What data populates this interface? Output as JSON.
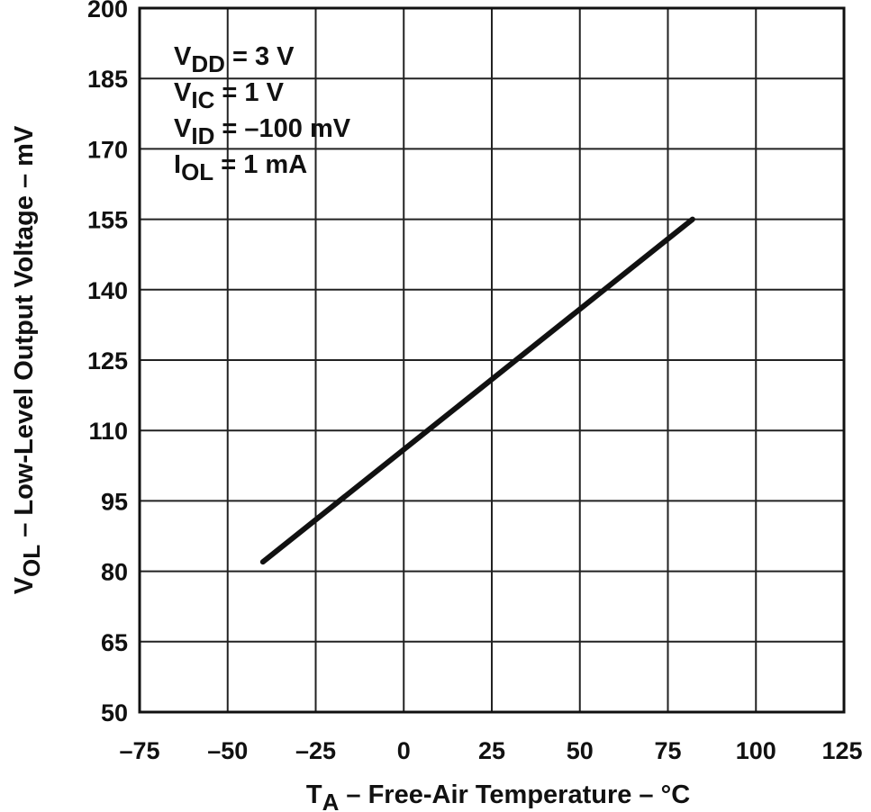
{
  "chart_data": {
    "type": "line",
    "x_axis": {
      "label_main": "T",
      "label_sub": "A",
      "label_rest": " – Free-Air Temperature – °C",
      "range": [
        -75,
        125
      ],
      "ticks": [
        -75,
        -50,
        -25,
        0,
        25,
        50,
        75,
        100,
        125
      ],
      "tick_labels": [
        "–75",
        "–50",
        "–25",
        "0",
        "25",
        "50",
        "75",
        "100",
        "125"
      ]
    },
    "y_axis": {
      "label_main": "V",
      "label_sub": "OL",
      "label_rest": " – Low-Level Output Voltage – mV",
      "range": [
        50,
        200
      ],
      "ticks": [
        50,
        65,
        80,
        95,
        110,
        125,
        140,
        155,
        170,
        185,
        200
      ],
      "tick_labels": [
        "50",
        "65",
        "80",
        "95",
        "110",
        "125",
        "140",
        "155",
        "170",
        "185",
        "200"
      ]
    },
    "grid": true,
    "conditions": [
      {
        "main": "V",
        "sub": "DD",
        "rest": " = 3 V"
      },
      {
        "main": "V",
        "sub": "IC",
        "rest": " = 1 V"
      },
      {
        "main": "V",
        "sub": "ID",
        "rest": " = –100 mV"
      },
      {
        "main": "I",
        "sub": "OL",
        "rest": " = 1 mA"
      }
    ],
    "series": [
      {
        "x": [
          -40,
          82
        ],
        "y": [
          82,
          155
        ]
      }
    ]
  }
}
